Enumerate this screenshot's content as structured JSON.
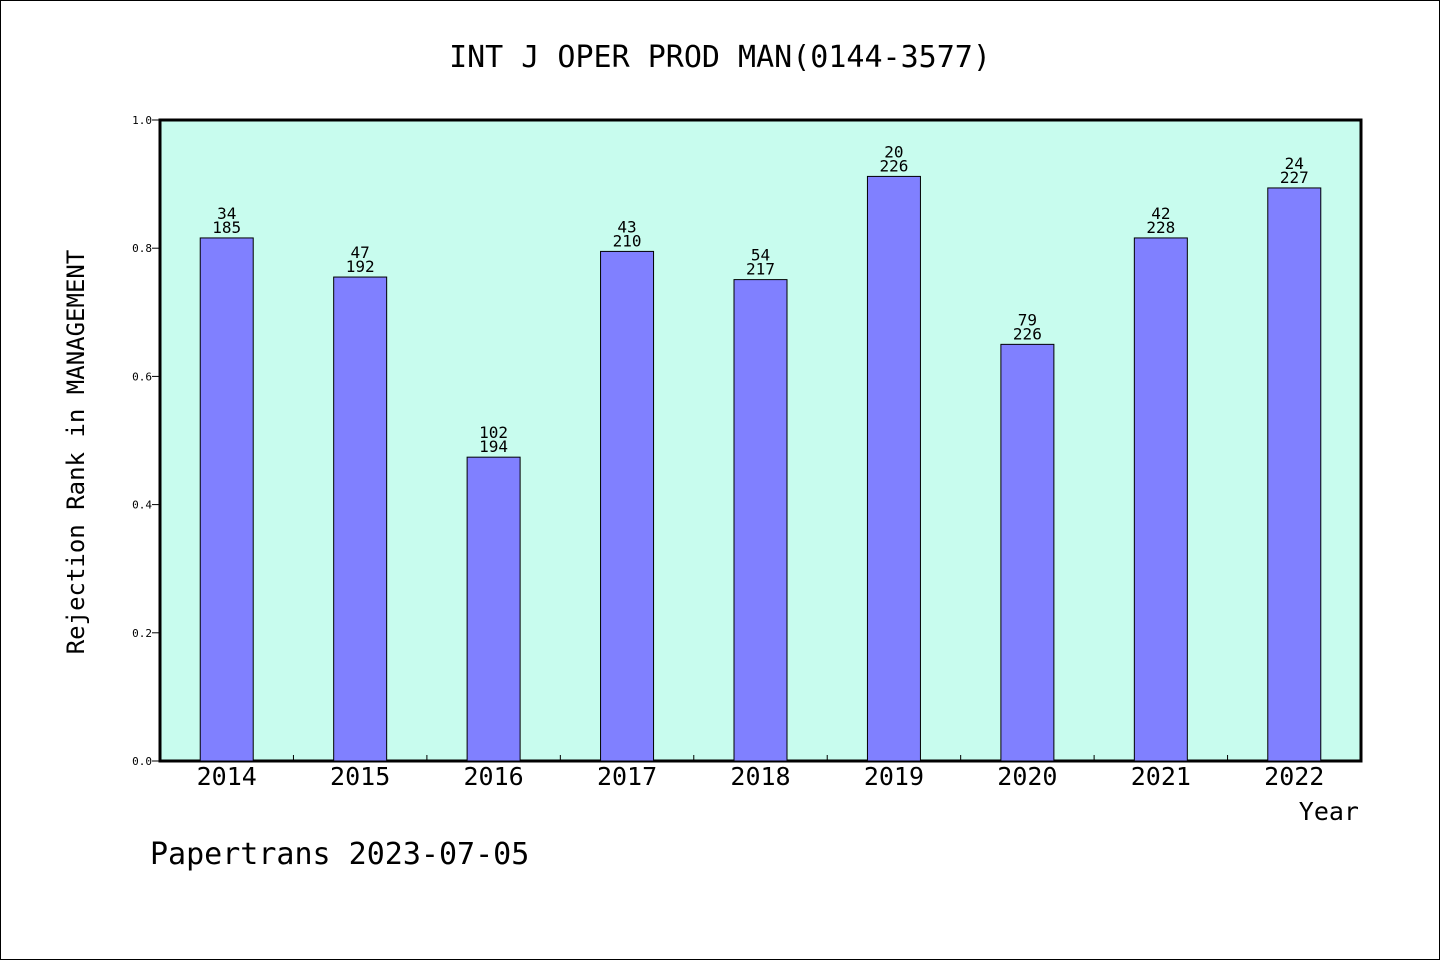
{
  "chart_data": {
    "type": "bar",
    "title": "INT J OPER PROD MAN(0144-3577)",
    "xlabel": "Year",
    "ylabel": "Rejection Rank in MANAGEMENT",
    "ylim": [
      0,
      1.0
    ],
    "yticks": [
      "0.0",
      "0.2",
      "0.4",
      "0.6",
      "0.8",
      "1.0"
    ],
    "categories": [
      "2014",
      "2015",
      "2016",
      "2017",
      "2018",
      "2019",
      "2020",
      "2021",
      "2022"
    ],
    "values": [
      0.816,
      0.755,
      0.474,
      0.795,
      0.751,
      0.912,
      0.65,
      0.816,
      0.894
    ],
    "labels_top": [
      "34",
      "47",
      "102",
      "43",
      "54",
      "20",
      "79",
      "42",
      "24"
    ],
    "labels_bottom": [
      "185",
      "192",
      "194",
      "210",
      "217",
      "226",
      "226",
      "228",
      "227"
    ],
    "grid": false,
    "colors": {
      "plot_background": "#c8fcee",
      "bar_fill": "#8080ff",
      "bar_stroke": "#000000"
    }
  },
  "footer": {
    "text": "Papertrans 2023-07-05"
  }
}
